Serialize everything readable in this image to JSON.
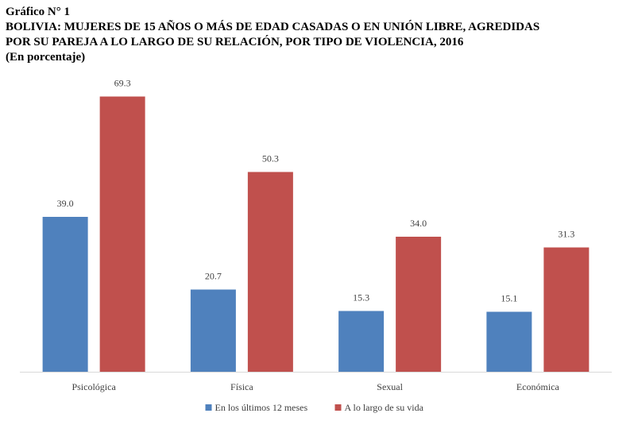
{
  "header": {
    "caption": "Gráfico N° 1",
    "title_line1": "BOLIVIA: MUJERES DE 15 AÑOS O MÁS DE EDAD CASADAS O EN UNIÓN LIBRE, AGREDIDAS",
    "title_line2": "POR SU PAREJA A LO LARGO DE SU RELACIÓN, POR TIPO DE VIOLENCIA, 2016",
    "subtitle": "(En porcentaje)"
  },
  "chart_data": {
    "type": "bar",
    "categories": [
      "Psicológica",
      "Física",
      "Sexual",
      "Económica"
    ],
    "series": [
      {
        "name": "En los últimos 12 meses",
        "values": [
          39.0,
          20.7,
          15.3,
          15.1
        ],
        "color": "#4F81BD"
      },
      {
        "name": "A lo largo de su vida",
        "values": [
          69.3,
          50.3,
          34.0,
          31.3
        ],
        "color": "#C0504D"
      }
    ],
    "ylim": [
      0,
      75
    ],
    "grid": false,
    "legend_position": "bottom",
    "data_labels": true,
    "value_format": "one-decimal"
  }
}
